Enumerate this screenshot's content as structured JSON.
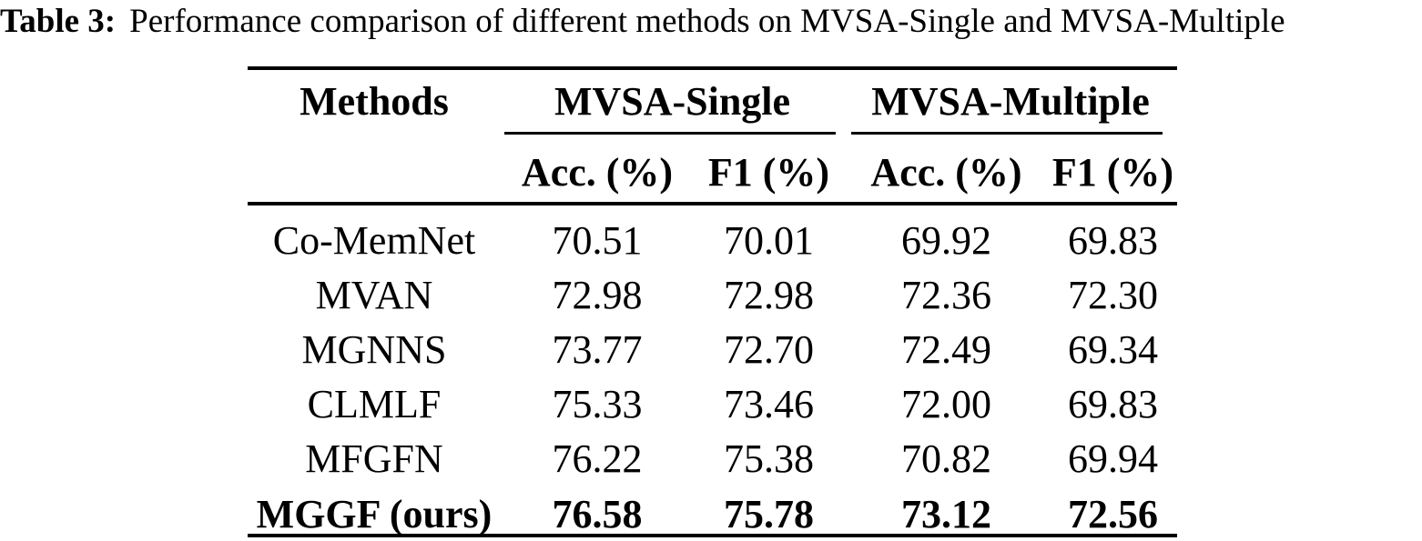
{
  "caption": {
    "label": "Table 3:",
    "text": "Performance comparison of different methods on MVSA-Single and MVSA-Multiple"
  },
  "table": {
    "methods_header": "Methods",
    "group_headers": {
      "single": "MVSA-Single",
      "multiple": "MVSA-Multiple"
    },
    "subheaders": {
      "acc_single": "Acc. (%)",
      "f1_single": "F1 (%)",
      "acc_multiple": "Acc. (%)",
      "f1_multiple": "F1 (%)"
    },
    "rows": [
      {
        "method": "Co-MemNet",
        "values": [
          "70.51",
          "70.01",
          "69.92",
          "69.83"
        ],
        "bold": false
      },
      {
        "method": "MVAN",
        "values": [
          "72.98",
          "72.98",
          "72.36",
          "72.30"
        ],
        "bold": false
      },
      {
        "method": "MGNNS",
        "values": [
          "73.77",
          "72.70",
          "72.49",
          "69.34"
        ],
        "bold": false
      },
      {
        "method": "CLMLF",
        "values": [
          "75.33",
          "73.46",
          "72.00",
          "69.83"
        ],
        "bold": false
      },
      {
        "method": "MFGFN",
        "values": [
          "76.22",
          "75.38",
          "70.82",
          "69.94"
        ],
        "bold": false
      },
      {
        "method": "MGGF (ours)",
        "values": [
          "76.58",
          "75.78",
          "73.12",
          "72.56"
        ],
        "bold": true
      }
    ]
  },
  "colors": {
    "text": "#000000",
    "background": "#ffffff",
    "rule": "#000000"
  }
}
